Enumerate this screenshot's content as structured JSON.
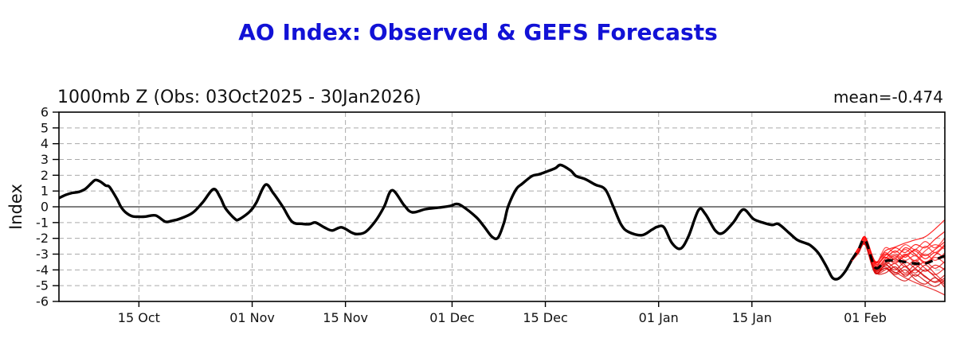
{
  "header": {
    "title": "AO Index: Observed & GEFS Forecasts"
  },
  "panel": {
    "subtitle": "1000mb Z (Obs: 03Oct2025 - 30Jan2026)",
    "mean_label": "mean=-0.474",
    "y_axis_label": "Index"
  },
  "colors": {
    "title": "#1212d6",
    "observed": "#000000",
    "ensemble_mean": "#000000",
    "grid": "#aaaaaa",
    "zero_line": "#333333",
    "member_colors": [
      "#ff0000",
      "#e81111",
      "#ff2a2a",
      "#d40808"
    ]
  },
  "chart_data": {
    "type": "line",
    "title": "1000mb Z (Obs: 03Oct2025 - 30Jan2026)",
    "xlabel": "",
    "ylabel": "Index",
    "ylim": [
      -6,
      6
    ],
    "grid": true,
    "legend_position": "none",
    "observed_mean": -0.474,
    "x_axis_note": "x in days since 03Oct2025; observed ends 30Jan2026 (day 119); GEFS forecasts extend beyond",
    "x_range_days": [
      0,
      132.9
    ],
    "y_ticks": [
      6,
      5,
      4,
      3,
      2,
      1,
      0,
      -1,
      -2,
      -3,
      -4,
      -5,
      -6
    ],
    "x_ticks": [
      {
        "day": 12,
        "label": "15 Oct"
      },
      {
        "day": 29,
        "label": "01 Nov"
      },
      {
        "day": 43,
        "label": "15 Nov"
      },
      {
        "day": 59,
        "label": "01 Dec"
      },
      {
        "day": 73,
        "label": "15 Dec"
      },
      {
        "day": 90,
        "label": "01 Jan"
      },
      {
        "day": 104,
        "label": "15 Jan"
      },
      {
        "day": 121,
        "label": "01 Feb"
      }
    ],
    "observed": {
      "name": "Observed AO index (1000mb Z)",
      "points": [
        [
          0,
          0.55
        ],
        [
          1,
          0.75
        ],
        [
          2,
          0.88
        ],
        [
          3,
          0.95
        ],
        [
          4,
          1.15
        ],
        [
          5,
          1.55
        ],
        [
          5.5,
          1.7
        ],
        [
          6.2,
          1.6
        ],
        [
          7,
          1.35
        ],
        [
          7.6,
          1.25
        ],
        [
          8.7,
          0.5
        ],
        [
          9.3,
          0
        ],
        [
          10,
          -0.35
        ],
        [
          11,
          -0.6
        ],
        [
          12,
          -0.63
        ],
        [
          13,
          -0.62
        ],
        [
          14.5,
          -0.55
        ],
        [
          16,
          -0.95
        ],
        [
          17,
          -0.88
        ],
        [
          18,
          -0.78
        ],
        [
          20,
          -0.4
        ],
        [
          21.6,
          0.3
        ],
        [
          23.2,
          1.12
        ],
        [
          24.2,
          0.6
        ],
        [
          25,
          -0.1
        ],
        [
          26.4,
          -0.76
        ],
        [
          27,
          -0.8
        ],
        [
          28.6,
          -0.32
        ],
        [
          29.6,
          0.25
        ],
        [
          31,
          1.4
        ],
        [
          32.2,
          0.85
        ],
        [
          33.6,
          0
        ],
        [
          35,
          -0.95
        ],
        [
          36.5,
          -1.08
        ],
        [
          37.6,
          -1.1
        ],
        [
          38.5,
          -1.0
        ],
        [
          39.8,
          -1.3
        ],
        [
          41,
          -1.5
        ],
        [
          42.4,
          -1.3
        ],
        [
          44,
          -1.65
        ],
        [
          44.8,
          -1.73
        ],
        [
          46,
          -1.6
        ],
        [
          47.5,
          -0.9
        ],
        [
          48.8,
          0
        ],
        [
          50,
          1.05
        ],
        [
          51.8,
          0.1
        ],
        [
          53,
          -0.35
        ],
        [
          55,
          -0.15
        ],
        [
          57,
          -0.05
        ],
        [
          58.7,
          0.05
        ],
        [
          59.6,
          0.18
        ],
        [
          60.5,
          0.05
        ],
        [
          62.6,
          -0.65
        ],
        [
          63.8,
          -1.25
        ],
        [
          65,
          -1.9
        ],
        [
          65.9,
          -1.95
        ],
        [
          66.8,
          -1.0
        ],
        [
          67.4,
          0
        ],
        [
          68.6,
          1.1
        ],
        [
          69.5,
          1.45
        ],
        [
          71,
          1.95
        ],
        [
          72,
          2.05
        ],
        [
          73,
          2.2
        ],
        [
          74.5,
          2.45
        ],
        [
          75.3,
          2.65
        ],
        [
          76.8,
          2.3
        ],
        [
          77.6,
          1.95
        ],
        [
          79,
          1.75
        ],
        [
          80.5,
          1.4
        ],
        [
          82,
          1.1
        ],
        [
          83.2,
          0
        ],
        [
          84.4,
          -1.15
        ],
        [
          85.5,
          -1.6
        ],
        [
          87.5,
          -1.8
        ],
        [
          89,
          -1.45
        ],
        [
          89.8,
          -1.27
        ],
        [
          90.8,
          -1.3
        ],
        [
          92,
          -2.3
        ],
        [
          93.3,
          -2.65
        ],
        [
          94.5,
          -1.85
        ],
        [
          96,
          -0.2
        ],
        [
          97,
          -0.45
        ],
        [
          98.5,
          -1.5
        ],
        [
          99.6,
          -1.67
        ],
        [
          101.2,
          -1.0
        ],
        [
          102.7,
          -0.17
        ],
        [
          104.2,
          -0.76
        ],
        [
          105.6,
          -1.0
        ],
        [
          107,
          -1.15
        ],
        [
          108,
          -1.1
        ],
        [
          109.6,
          -1.67
        ],
        [
          110.8,
          -2.1
        ],
        [
          112,
          -2.3
        ],
        [
          112.8,
          -2.45
        ],
        [
          114,
          -2.95
        ],
        [
          115.2,
          -3.8
        ],
        [
          116.1,
          -4.5
        ],
        [
          117,
          -4.55
        ],
        [
          118,
          -4.1
        ],
        [
          119,
          -3.35
        ]
      ]
    },
    "forecast": {
      "name": "GEFS ensemble forecasts",
      "days": [
        119,
        120,
        121,
        122.5,
        124,
        125.5,
        127,
        128.5,
        130,
        131.5,
        133
      ],
      "mean": [
        -3.35,
        -2.7,
        -2.1,
        -3.85,
        -3.45,
        -3.4,
        -3.5,
        -3.6,
        -3.6,
        -3.35,
        -3.1
      ],
      "members": [
        [
          -3.3,
          -2.6,
          -1.95,
          -3.5,
          -2.8,
          -2.55,
          -2.3,
          -2.1,
          -1.9,
          -1.4,
          -0.8
        ],
        [
          -3.4,
          -2.8,
          -2.25,
          -4.05,
          -3.9,
          -4.15,
          -4.5,
          -4.8,
          -5.05,
          -5.3,
          -5.6
        ],
        [
          -3.32,
          -2.68,
          -2.1,
          -3.7,
          -3.2,
          -3.6,
          -3.05,
          -3.4,
          -2.8,
          -2.4,
          -2.7
        ],
        [
          -3.42,
          -2.88,
          -2.3,
          -4.1,
          -4.2,
          -3.8,
          -4.4,
          -4.0,
          -4.45,
          -4.75,
          -4.3
        ],
        [
          -3.3,
          -2.62,
          -1.9,
          -3.45,
          -3.0,
          -3.3,
          -2.6,
          -3.0,
          -3.5,
          -3.05,
          -2.45
        ],
        [
          -3.4,
          -2.82,
          -2.4,
          -4.2,
          -3.6,
          -3.1,
          -3.7,
          -4.2,
          -3.7,
          -4.25,
          -4.85
        ],
        [
          -3.31,
          -2.7,
          -2.0,
          -3.6,
          -2.6,
          -2.9,
          -2.4,
          -2.7,
          -2.2,
          -2.6,
          -1.95
        ],
        [
          -3.41,
          -2.9,
          -2.2,
          -4.0,
          -3.8,
          -4.3,
          -4.0,
          -4.6,
          -4.9,
          -4.5,
          -5.15
        ],
        [
          -3.33,
          -2.64,
          -2.12,
          -3.8,
          -3.3,
          -2.8,
          -3.2,
          -2.7,
          -3.1,
          -2.7,
          -2.2
        ],
        [
          -3.43,
          -2.84,
          -2.32,
          -4.12,
          -4.0,
          -3.6,
          -4.2,
          -3.7,
          -4.1,
          -3.7,
          -4.0
        ],
        [
          -3.32,
          -2.72,
          -2.02,
          -3.55,
          -2.9,
          -3.4,
          -3.0,
          -3.5,
          -3.0,
          -3.4,
          -2.9
        ],
        [
          -3.42,
          -2.92,
          -2.42,
          -4.22,
          -3.7,
          -4.0,
          -3.5,
          -3.9,
          -4.4,
          -4.8,
          -4.5
        ],
        [
          -3.3,
          -2.66,
          -1.92,
          -3.62,
          -3.1,
          -2.6,
          -2.9,
          -2.4,
          -2.6,
          -2.05,
          -1.55
        ],
        [
          -3.4,
          -2.86,
          -2.22,
          -3.92,
          -3.5,
          -3.9,
          -4.3,
          -3.9,
          -3.5,
          -3.9,
          -3.45
        ],
        [
          -3.34,
          -2.74,
          -2.14,
          -3.72,
          -3.4,
          -3.0,
          -3.4,
          -3.1,
          -3.6,
          -3.2,
          -3.6
        ],
        [
          -3.44,
          -2.94,
          -2.34,
          -4.02,
          -3.6,
          -4.2,
          -3.8,
          -4.4,
          -4.0,
          -4.45,
          -4.95
        ],
        [
          -3.31,
          -2.61,
          -2.04,
          -3.52,
          -3.2,
          -3.5,
          -3.1,
          -2.8,
          -3.3,
          -2.9,
          -3.3
        ],
        [
          -3.41,
          -2.81,
          -2.24,
          -3.94,
          -3.7,
          -3.3,
          -3.8,
          -3.4,
          -3.9,
          -4.3,
          -3.85
        ],
        [
          -3.33,
          -2.71,
          -2.06,
          -3.82,
          -3.0,
          -3.2,
          -2.7,
          -3.1,
          -2.5,
          -2.9,
          -2.35
        ],
        [
          -3.43,
          -2.83,
          -2.36,
          -4.14,
          -3.9,
          -4.4,
          -4.7,
          -4.3,
          -4.7,
          -5.05,
          -4.6
        ]
      ]
    }
  }
}
